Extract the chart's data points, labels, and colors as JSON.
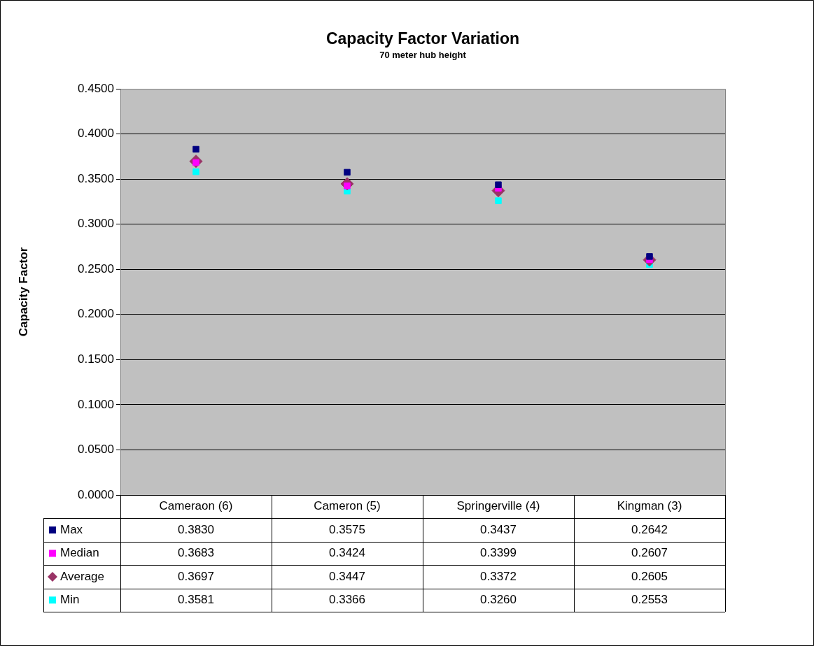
{
  "chart_data": {
    "type": "scatter",
    "title": "Capacity Factor Variation",
    "subtitle": "70 meter hub height",
    "ylabel": "Capacity Factor",
    "categories": [
      "Cameraon (6)",
      "Cameron (5)",
      "Springerville (4)",
      "Kingman (3)"
    ],
    "series": [
      {
        "name": "Max",
        "color": "#000080",
        "marker": "square",
        "values": [
          0.383,
          0.3575,
          0.3437,
          0.2642
        ],
        "value_labels": [
          "0.3830",
          "0.3575",
          "0.3437",
          "0.2642"
        ]
      },
      {
        "name": "Median",
        "color": "#ff00ff",
        "marker": "square",
        "values": [
          0.3683,
          0.3424,
          0.3399,
          0.2607
        ],
        "value_labels": [
          "0.3683",
          "0.3424",
          "0.3399",
          "0.2607"
        ]
      },
      {
        "name": "Average",
        "color": "#993366",
        "marker": "diamond",
        "values": [
          0.3697,
          0.3447,
          0.3372,
          0.2605
        ],
        "value_labels": [
          "0.3697",
          "0.3447",
          "0.3372",
          "0.2605"
        ]
      },
      {
        "name": "Min",
        "color": "#00ffff",
        "marker": "square",
        "values": [
          0.3581,
          0.3366,
          0.326,
          0.2553
        ],
        "value_labels": [
          "0.3581",
          "0.3366",
          "0.3260",
          "0.2553"
        ]
      }
    ],
    "ylim": [
      0,
      0.45
    ],
    "yticks": [
      {
        "value": 0,
        "label": "0.0000"
      },
      {
        "value": 0.05,
        "label": "0.0500"
      },
      {
        "value": 0.1,
        "label": "0.1000"
      },
      {
        "value": 0.15,
        "label": "0.1500"
      },
      {
        "value": 0.2,
        "label": "0.2000"
      },
      {
        "value": 0.25,
        "label": "0.2500"
      },
      {
        "value": 0.3,
        "label": "0.3000"
      },
      {
        "value": 0.35,
        "label": "0.3500"
      },
      {
        "value": 0.4,
        "label": "0.4000"
      },
      {
        "value": 0.45,
        "label": "0.4500"
      }
    ],
    "grid": "y",
    "legend": "bottom"
  }
}
